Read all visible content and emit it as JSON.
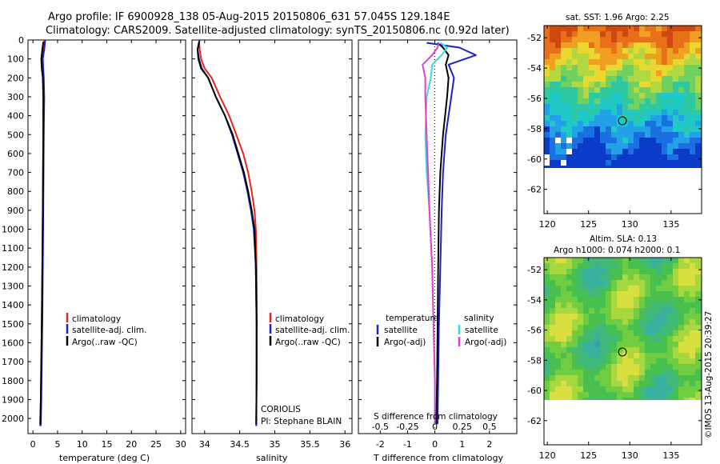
{
  "header": {
    "line1": "Argo profile: IF 6900928_138 05-Aug-2015 20150806_631 57.045S 129.184E",
    "line2": "Climatology: CARS2009. Satellite-adjusted climatology: synTS_20150806.nc (0.92d later)"
  },
  "colors": {
    "climatology": "#e8241c",
    "satellite_adj": "#1a22c8",
    "argo": "#000000",
    "satellite_s": "#33dddd",
    "argo_s": "#e040d0"
  },
  "legend": {
    "climatology": "climatology",
    "satellite_adj": "satellite-adj. clim.",
    "argo_raw": "Argo(..raw -QC)",
    "temperature": "temperature",
    "salinity": "salinity",
    "satellite": "satellite",
    "argo_adj": "Argo(-adj)"
  },
  "annotations": {
    "coriolis": "CORIOLIS",
    "pi": "PI: Stephane BLAIN",
    "s_diff_label": "S difference from climatology",
    "timestamp": "©IMOS 13-Aug-2015 20:39:27"
  },
  "maps": {
    "sst_title": "sat. SST: 1.96 Argo: 2.25",
    "sla_title1": "Altim. SLA: 0.13",
    "sla_title2": "Argo h1000: 0.074 h2000: 0.1",
    "lat_ticks": [
      "-52",
      "-54",
      "-56",
      "-58",
      "-60",
      "-62"
    ],
    "lon_ticks": [
      "120",
      "125",
      "130",
      "135"
    ],
    "marker": {
      "lon": 129.184,
      "lat": -57.045
    }
  },
  "chart_data": [
    {
      "type": "line",
      "xlabel": "temperature (deg C)",
      "ylabel": "",
      "xlim": [
        -1,
        31
      ],
      "ylim": [
        2080,
        0
      ],
      "x_ticks": [
        0,
        5,
        10,
        15,
        20,
        25,
        30
      ],
      "y_ticks": [
        0,
        100,
        200,
        300,
        400,
        500,
        600,
        700,
        800,
        900,
        1000,
        1100,
        1200,
        1300,
        1400,
        1500,
        1600,
        1700,
        1800,
        1900,
        2000
      ],
      "series": [
        {
          "name": "climatology",
          "color": "#e8241c",
          "x": [
            2.3,
            2.1,
            1.9,
            2.0,
            2.1,
            2.15,
            2.1,
            2.05,
            2.0,
            1.9,
            1.8,
            1.7,
            1.6,
            1.45
          ],
          "y": [
            0,
            50,
            100,
            150,
            200,
            300,
            500,
            700,
            900,
            1200,
            1500,
            1700,
            1900,
            2040
          ]
        },
        {
          "name": "satellite-adj. clim.",
          "color": "#1a22c8",
          "x": [
            2.5,
            2.3,
            2.0,
            2.1,
            2.2,
            2.3,
            2.2,
            2.15,
            2.1,
            2.0,
            1.9,
            1.8,
            1.7,
            1.6
          ],
          "y": [
            0,
            50,
            100,
            150,
            200,
            300,
            500,
            700,
            900,
            1200,
            1500,
            1700,
            1900,
            2040
          ]
        },
        {
          "name": "Argo(..raw -QC)",
          "color": "#000000",
          "x": [
            2.1,
            1.9,
            1.7,
            1.8,
            2.0,
            2.1,
            2.1,
            2.05,
            2.0,
            1.9,
            1.8,
            1.7,
            1.6,
            1.5
          ],
          "y": [
            10,
            50,
            100,
            150,
            200,
            300,
            500,
            700,
            900,
            1200,
            1500,
            1700,
            1900,
            2030
          ]
        }
      ]
    },
    {
      "type": "line",
      "xlabel": "salinity",
      "ylabel": "",
      "xlim": [
        33.82,
        36.1
      ],
      "ylim": [
        2080,
        0
      ],
      "x_ticks": [
        34,
        34.5,
        35,
        35.5,
        36
      ],
      "x_tick_labels": [
        "34",
        "34.5",
        "35",
        "35.5",
        "36"
      ],
      "series": [
        {
          "name": "climatology",
          "color": "#e8241c",
          "x": [
            33.92,
            33.93,
            33.95,
            34.0,
            34.1,
            34.22,
            34.35,
            34.45,
            34.55,
            34.62,
            34.67,
            34.71,
            34.73,
            34.74,
            34.745,
            34.74,
            34.735
          ],
          "y": [
            0,
            50,
            100,
            150,
            200,
            300,
            400,
            500,
            600,
            700,
            800,
            900,
            1000,
            1200,
            1500,
            1800,
            2040
          ]
        },
        {
          "name": "satellite-adj. clim.",
          "color": "#1a22c8",
          "x": [
            33.93,
            33.9,
            33.92,
            33.96,
            34.05,
            34.16,
            34.29,
            34.39,
            34.47,
            34.55,
            34.61,
            34.66,
            34.7,
            34.73,
            34.74,
            34.74,
            34.735
          ],
          "y": [
            0,
            50,
            100,
            150,
            200,
            300,
            400,
            500,
            600,
            700,
            800,
            900,
            1000,
            1200,
            1500,
            1800,
            2040
          ]
        },
        {
          "name": "Argo(..raw -QC)",
          "color": "#000000",
          "x": [
            33.92,
            33.9,
            33.91,
            33.95,
            34.05,
            34.16,
            34.29,
            34.4,
            34.48,
            34.56,
            34.62,
            34.67,
            34.71,
            34.73,
            34.74,
            34.74,
            34.735
          ],
          "y": [
            10,
            50,
            100,
            150,
            200,
            300,
            400,
            500,
            600,
            700,
            800,
            900,
            1000,
            1200,
            1500,
            1800,
            2030
          ]
        }
      ]
    },
    {
      "type": "line",
      "xlabel": "T difference from climatology",
      "ylabel": "",
      "xlim": [
        -2.8,
        3
      ],
      "ylim": [
        2080,
        0
      ],
      "x_ticks": [
        -2,
        -1,
        0,
        1,
        2
      ],
      "x_tick_labels": [
        "-2",
        "-1",
        "0",
        "1",
        "2"
      ],
      "top_axis": {
        "label": "S difference from climatology",
        "ticks": [
          -0.5,
          -0.25,
          0,
          0.25,
          0.5
        ],
        "tick_labels": [
          "-0.5",
          "-0.25",
          "0",
          "0.25",
          "0.5"
        ],
        "x_scale_factor": 4
      },
      "series": [
        {
          "name": "temperature satellite",
          "color": "#1a22c8",
          "x": [
            -0.3,
            0.9,
            1.5,
            0.5,
            0.7,
            0.6,
            0.4,
            0.3,
            0.25,
            0.2,
            0.15,
            0.12,
            0.1
          ],
          "y": [
            15,
            40,
            80,
            130,
            200,
            300,
            500,
            700,
            900,
            1200,
            1500,
            1800,
            2030
          ]
        },
        {
          "name": "temperature Argo(-adj)",
          "color": "#000000",
          "x": [
            0.1,
            0.3,
            0.5,
            0.4,
            0.5,
            0.45,
            0.3,
            0.2,
            0.15,
            0.12,
            0.1,
            0.08,
            0.05
          ],
          "y": [
            15,
            40,
            80,
            130,
            200,
            300,
            500,
            700,
            900,
            1200,
            1500,
            1800,
            2030
          ]
        },
        {
          "name": "salinity satellite",
          "color": "#33dddd",
          "x": [
            0.2,
            0.45,
            0.25,
            -0.1,
            -0.15,
            -0.3,
            -0.35,
            -0.3,
            -0.2,
            -0.1,
            -0.05,
            0.0,
            0.0
          ],
          "y": [
            15,
            40,
            80,
            130,
            200,
            300,
            500,
            700,
            900,
            1200,
            1500,
            1800,
            2030
          ]
        },
        {
          "name": "salinity Argo(-adj)",
          "color": "#e040d0",
          "x": [
            0.15,
            0.1,
            -0.1,
            -0.45,
            -0.35,
            -0.35,
            -0.3,
            -0.25,
            -0.2,
            -0.1,
            -0.05,
            0.0,
            0.0
          ],
          "y": [
            15,
            40,
            80,
            130,
            200,
            300,
            500,
            700,
            900,
            1200,
            1500,
            1800,
            2030
          ]
        }
      ]
    }
  ]
}
